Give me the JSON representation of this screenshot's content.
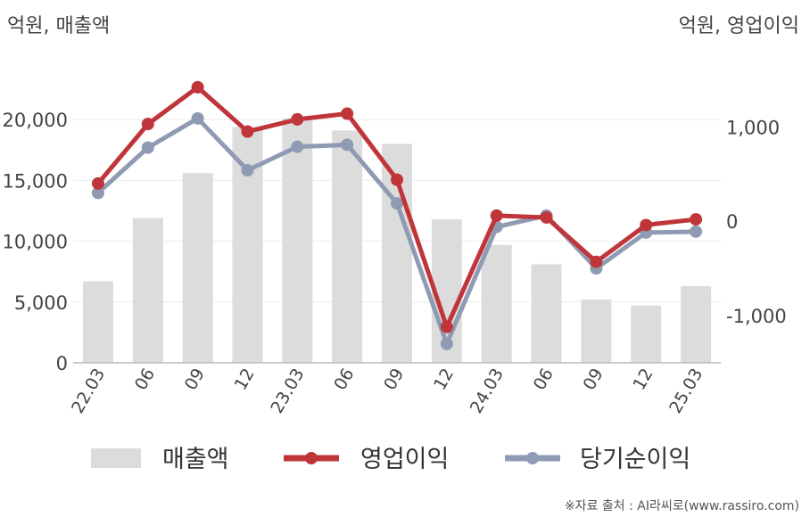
{
  "chart_data": {
    "type": "bar+line",
    "left_unit_label": "억원, 매출액",
    "right_unit_label": "억원, 영업이익",
    "categories": [
      "22.03",
      "06",
      "09",
      "12",
      "23.03",
      "06",
      "09",
      "12",
      "24.03",
      "06",
      "09",
      "12",
      "25.03"
    ],
    "left_axis": {
      "ylim": [
        0,
        22500
      ],
      "ticks": [
        0,
        5000,
        10000,
        15000,
        20000
      ],
      "tick_labels": [
        "0",
        "5,000",
        "10,000",
        "15,000",
        "20,000"
      ]
    },
    "right_axis": {
      "ylim": [
        -1500,
        1400
      ],
      "ticks": [
        -1000,
        0,
        1000
      ],
      "tick_labels": [
        "-1,000",
        "0",
        "1,000"
      ]
    },
    "series": [
      {
        "name": "매출액",
        "type": "bar",
        "axis": "left",
        "color": "#dcdcdc",
        "values": [
          6700,
          11900,
          15600,
          19400,
          20100,
          19100,
          18000,
          11800,
          9700,
          8100,
          5200,
          4700,
          6300
        ]
      },
      {
        "name": "영업이익",
        "type": "line",
        "axis": "right",
        "color": "#c0353a",
        "values": [
          400,
          1030,
          1420,
          950,
          1080,
          1140,
          440,
          -1120,
          60,
          40,
          -430,
          -40,
          20
        ]
      },
      {
        "name": "당기순이익",
        "type": "line",
        "axis": "right",
        "color": "#8f9bb3",
        "values": [
          300,
          780,
          1090,
          540,
          790,
          810,
          190,
          -1300,
          -60,
          60,
          -500,
          -120,
          -110
        ]
      }
    ],
    "grid": true,
    "legend_position": "bottom"
  },
  "source_text": "※자료 출처 : AI라씨로(www.rassiro.com)"
}
